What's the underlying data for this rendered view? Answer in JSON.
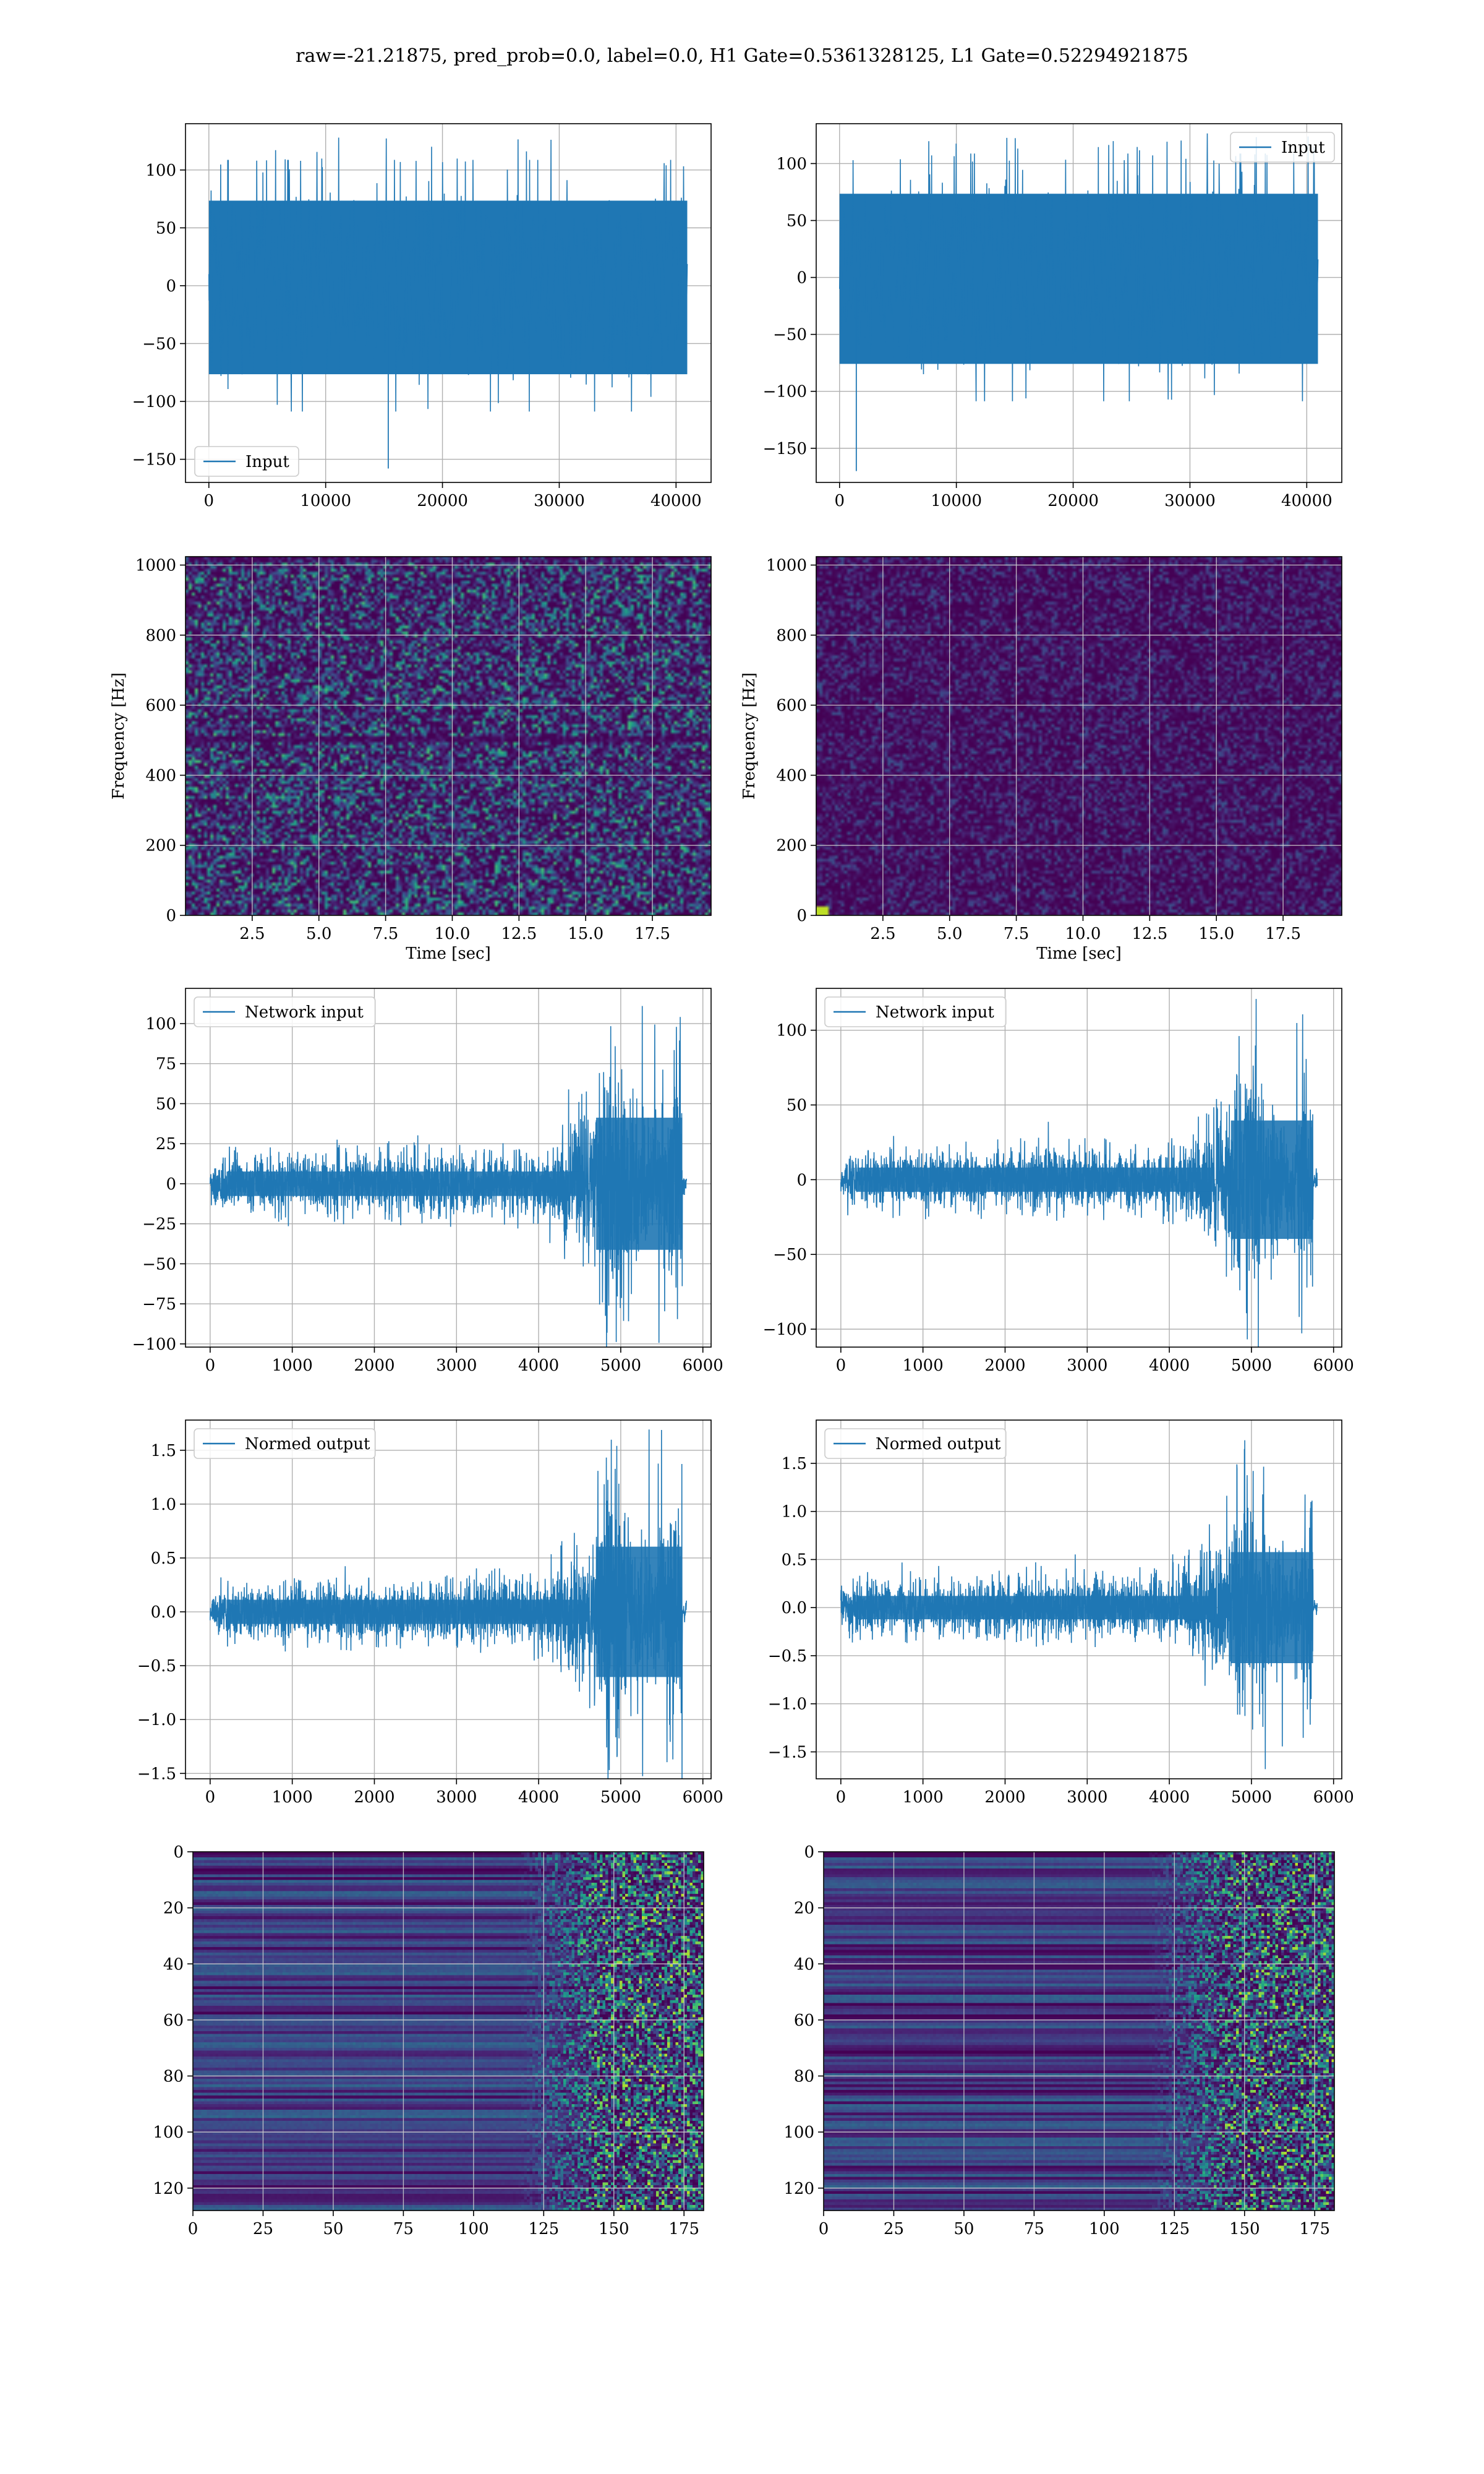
{
  "figure": {
    "suptitle": "raw=-21.21875, pred_prob=0.0, label=0.0, H1 Gate=0.5361328125, L1 Gate=0.52294921875"
  },
  "colors": {
    "series": "#1f77b4",
    "viridis_low": "#440154",
    "viridis_mid": "#21918c",
    "viridis_high": "#fde725"
  },
  "chart_data": [
    {
      "id": "h1-input",
      "type": "line",
      "xlim": [
        -2000,
        43000
      ],
      "ylim": [
        -170,
        140
      ],
      "xticks": [
        0,
        10000,
        20000,
        30000,
        40000
      ],
      "yticks": [
        -150,
        -100,
        -50,
        0,
        50,
        100
      ],
      "x_range": [
        0,
        40960
      ],
      "envelope": {
        "typical": 75,
        "peak": 130,
        "min_peak": -158,
        "bias": -10
      },
      "series": [
        {
          "name": "Input"
        }
      ],
      "legend": "lower-left",
      "grid": true
    },
    {
      "id": "l1-input",
      "type": "line",
      "xlim": [
        -2000,
        43000
      ],
      "ylim": [
        -180,
        135
      ],
      "xticks": [
        0,
        10000,
        20000,
        30000,
        40000
      ],
      "yticks": [
        -150,
        -100,
        -50,
        0,
        50,
        100
      ],
      "x_range": [
        0,
        40960
      ],
      "envelope": {
        "typical": 75,
        "peak": 127,
        "min_peak": -170,
        "bias": -8
      },
      "series": [
        {
          "name": "Input"
        }
      ],
      "legend": "upper-right",
      "grid": true
    },
    {
      "id": "h1-spectrogram",
      "type": "heatmap",
      "xlim": [
        0,
        19.7
      ],
      "ylim": [
        0,
        1024
      ],
      "xticks": [
        2.5,
        5.0,
        7.5,
        10.0,
        12.5,
        15.0,
        17.5
      ],
      "yticks": [
        0,
        200,
        400,
        600,
        800,
        1000
      ],
      "xlabel": "Time [sec]",
      "ylabel": "Frequency [Hz]",
      "noise_level": 0.32,
      "grid": true
    },
    {
      "id": "l1-spectrogram",
      "type": "heatmap",
      "xlim": [
        0,
        19.7
      ],
      "ylim": [
        0,
        1024
      ],
      "xticks": [
        2.5,
        5.0,
        7.5,
        10.0,
        12.5,
        15.0,
        17.5
      ],
      "yticks": [
        0,
        200,
        400,
        600,
        800,
        1000
      ],
      "xlabel": "Time [sec]",
      "ylabel": "Frequency [Hz]",
      "noise_level": 0.12,
      "grid": true
    },
    {
      "id": "h1-network-input",
      "type": "line",
      "xlim": [
        -300,
        6100
      ],
      "ylim": [
        -102,
        122
      ],
      "xticks": [
        0,
        1000,
        2000,
        3000,
        4000,
        5000,
        6000
      ],
      "yticks": [
        -100,
        -75,
        -50,
        -25,
        0,
        25,
        50,
        75,
        100
      ],
      "x_range": [
        0,
        5800
      ],
      "envelope": {
        "quiet": 17,
        "burst_start": 4700,
        "burst_end": 5750,
        "burst_amp": 75,
        "burst_peak": 115
      },
      "series": [
        {
          "name": "Network input"
        }
      ],
      "legend": "upper-left",
      "grid": true
    },
    {
      "id": "l1-network-input",
      "type": "line",
      "xlim": [
        -300,
        6100
      ],
      "ylim": [
        -112,
        128
      ],
      "xticks": [
        0,
        1000,
        2000,
        3000,
        4000,
        5000,
        6000
      ],
      "yticks": [
        -100,
        -50,
        0,
        50,
        100
      ],
      "x_range": [
        0,
        5800
      ],
      "envelope": {
        "quiet": 18,
        "burst_start": 4750,
        "burst_end": 5750,
        "burst_amp": 72,
        "burst_peak": 113
      },
      "series": [
        {
          "name": "Network input"
        }
      ],
      "legend": "upper-left",
      "grid": true
    },
    {
      "id": "h1-normed-output",
      "type": "line",
      "xlim": [
        -300,
        6100
      ],
      "ylim": [
        -1.55,
        1.78
      ],
      "xticks": [
        0,
        1000,
        2000,
        3000,
        4000,
        5000,
        6000
      ],
      "yticks": [
        -1.5,
        -1.0,
        -0.5,
        0.0,
        0.5,
        1.0,
        1.5
      ],
      "x_range": [
        0,
        5800
      ],
      "envelope": {
        "quiet": 0.25,
        "burst_start": 4700,
        "burst_end": 5750,
        "burst_amp": 1.1,
        "burst_peak": 1.7
      },
      "series": [
        {
          "name": "Normed output"
        }
      ],
      "legend": "upper-left",
      "grid": true
    },
    {
      "id": "l1-normed-output",
      "type": "line",
      "xlim": [
        -300,
        6100
      ],
      "ylim": [
        -1.78,
        1.95
      ],
      "xticks": [
        0,
        1000,
        2000,
        3000,
        4000,
        5000,
        6000
      ],
      "yticks": [
        -1.5,
        -1.0,
        -0.5,
        0.0,
        0.5,
        1.0,
        1.5
      ],
      "x_range": [
        0,
        5800
      ],
      "envelope": {
        "quiet": 0.27,
        "burst_start": 4750,
        "burst_end": 5750,
        "burst_amp": 1.05,
        "burst_peak": 1.75
      },
      "series": [
        {
          "name": "Normed output"
        }
      ],
      "legend": "upper-left",
      "grid": true
    },
    {
      "id": "h1-feature-map",
      "type": "heatmap",
      "xlim": [
        0,
        182
      ],
      "ylim": [
        128,
        0
      ],
      "xticks": [
        0,
        25,
        50,
        75,
        100,
        125,
        150,
        175
      ],
      "yticks": [
        0,
        20,
        40,
        60,
        80,
        100,
        120
      ],
      "rows": 128,
      "cols": 182,
      "active_from": 125,
      "grid": true
    },
    {
      "id": "l1-feature-map",
      "type": "heatmap",
      "xlim": [
        0,
        182
      ],
      "ylim": [
        128,
        0
      ],
      "xticks": [
        0,
        25,
        50,
        75,
        100,
        125,
        150,
        175
      ],
      "yticks": [
        0,
        20,
        40,
        60,
        80,
        100,
        120
      ],
      "rows": 128,
      "cols": 182,
      "active_from": 125,
      "grid": true
    }
  ]
}
